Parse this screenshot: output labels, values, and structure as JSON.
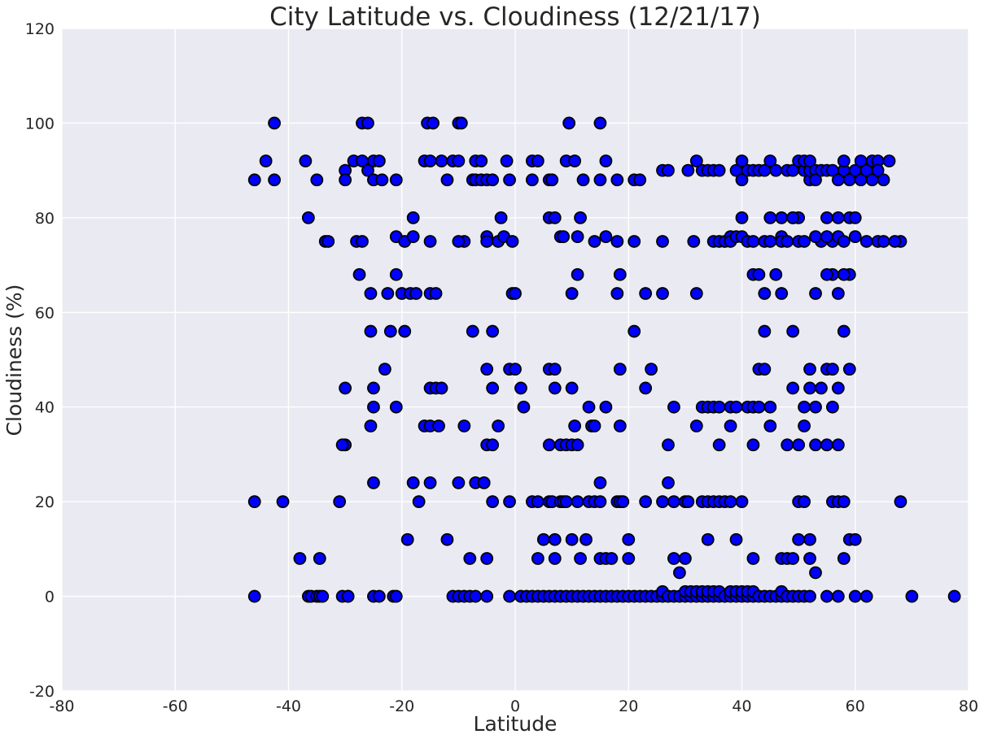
{
  "chart_data": {
    "type": "scatter",
    "title": "City Latitude vs. Cloudiness (12/21/17)",
    "xlabel": "Latitude",
    "ylabel": "Cloudiness (%)",
    "xlim": [
      -80,
      80
    ],
    "ylim": [
      -20,
      120
    ],
    "xticks": [
      -80,
      -60,
      -40,
      -20,
      0,
      20,
      40,
      60,
      80
    ],
    "yticks": [
      -20,
      0,
      20,
      40,
      60,
      80,
      100,
      120
    ],
    "grid": true,
    "legend": "none",
    "colors": {
      "background": "#eaeaf2",
      "grid": "#ffffff",
      "marker_fill": "#0000ff",
      "marker_edge": "#000000"
    },
    "points": [
      [
        -46,
        88
      ],
      [
        -44,
        92
      ],
      [
        -42.5,
        100
      ],
      [
        -42.5,
        88
      ],
      [
        -37,
        92
      ],
      [
        -36.5,
        80
      ],
      [
        -35,
        88
      ],
      [
        -33.5,
        75
      ],
      [
        -33,
        75
      ],
      [
        -30,
        90
      ],
      [
        -30,
        88
      ],
      [
        -29.5,
        0
      ],
      [
        -28.5,
        92
      ],
      [
        -28,
        75
      ],
      [
        -27.5,
        68
      ],
      [
        -27,
        75
      ],
      [
        -27,
        92
      ],
      [
        -27,
        100
      ],
      [
        -26,
        100
      ],
      [
        -26,
        90
      ],
      [
        -25.5,
        64
      ],
      [
        -25.5,
        56
      ],
      [
        -25,
        88
      ],
      [
        -25,
        92
      ],
      [
        -24,
        92
      ],
      [
        -23.5,
        88
      ],
      [
        -22.5,
        64
      ],
      [
        -22,
        56
      ],
      [
        -21,
        88
      ],
      [
        -21,
        68
      ],
      [
        -21,
        76
      ],
      [
        -20,
        64
      ],
      [
        -19.5,
        56
      ],
      [
        -19.5,
        75
      ],
      [
        -18.5,
        64
      ],
      [
        -18,
        80
      ],
      [
        -18,
        76
      ],
      [
        -17.5,
        64
      ],
      [
        -16,
        92
      ],
      [
        -15.5,
        100
      ],
      [
        -15,
        64
      ],
      [
        -15,
        92
      ],
      [
        -15,
        75
      ],
      [
        -14.5,
        100
      ],
      [
        -14,
        64
      ],
      [
        -13,
        92
      ],
      [
        -12,
        88
      ],
      [
        -11,
        92
      ],
      [
        -10,
        92
      ],
      [
        -10,
        100
      ],
      [
        -9.5,
        100
      ],
      [
        -9,
        75
      ],
      [
        -10,
        75
      ],
      [
        -7.5,
        88
      ],
      [
        -7,
        88
      ],
      [
        -7,
        92
      ],
      [
        -6,
        92
      ],
      [
        -6,
        88
      ],
      [
        -5,
        88
      ],
      [
        -5,
        76
      ],
      [
        -5,
        75
      ],
      [
        -4,
        88
      ],
      [
        -3,
        75
      ],
      [
        -2.5,
        80
      ],
      [
        -2,
        76
      ],
      [
        -1.5,
        92
      ],
      [
        -1,
        88
      ],
      [
        -0.5,
        75
      ],
      [
        -0.5,
        64
      ],
      [
        0,
        64
      ],
      [
        3,
        92
      ],
      [
        4,
        92
      ],
      [
        3,
        88
      ],
      [
        6,
        88
      ],
      [
        6.5,
        88
      ],
      [
        6,
        80
      ],
      [
        7,
        80
      ],
      [
        8,
        76
      ],
      [
        8.5,
        76
      ],
      [
        9,
        92
      ],
      [
        9.5,
        100
      ],
      [
        10.5,
        92
      ],
      [
        10,
        64
      ],
      [
        11,
        76
      ],
      [
        11.5,
        80
      ],
      [
        11,
        68
      ],
      [
        12,
        88
      ],
      [
        14,
        75
      ],
      [
        15,
        88
      ],
      [
        15,
        100
      ],
      [
        16,
        92
      ],
      [
        16,
        76
      ],
      [
        18,
        88
      ],
      [
        18,
        75
      ],
      [
        18,
        64
      ],
      [
        18.5,
        68
      ],
      [
        21,
        88
      ],
      [
        21,
        75
      ],
      [
        22,
        88
      ],
      [
        23,
        64
      ],
      [
        26,
        90
      ],
      [
        27,
        90
      ],
      [
        26,
        75
      ],
      [
        26,
        64
      ],
      [
        30.5,
        90
      ],
      [
        31.5,
        75
      ],
      [
        32,
        92
      ],
      [
        32,
        64
      ],
      [
        33,
        90
      ],
      [
        34,
        90
      ],
      [
        35,
        90
      ],
      [
        36,
        90
      ],
      [
        35,
        75
      ],
      [
        36,
        75
      ],
      [
        37,
        75
      ],
      [
        38,
        76
      ],
      [
        38,
        75
      ],
      [
        39,
        76
      ],
      [
        39,
        90
      ],
      [
        40,
        92
      ],
      [
        40,
        88
      ],
      [
        40,
        80
      ],
      [
        40,
        76
      ],
      [
        41,
        75
      ],
      [
        41,
        90
      ],
      [
        42,
        90
      ],
      [
        42,
        68
      ],
      [
        42,
        75
      ],
      [
        43,
        90
      ],
      [
        44,
        90
      ],
      [
        44,
        75
      ],
      [
        45,
        92
      ],
      [
        45,
        75
      ],
      [
        46,
        90
      ],
      [
        46,
        68
      ],
      [
        47,
        76
      ],
      [
        47,
        75
      ],
      [
        48,
        90
      ],
      [
        49,
        90
      ],
      [
        49,
        80
      ],
      [
        50,
        75
      ],
      [
        50,
        92
      ],
      [
        51,
        90
      ],
      [
        51,
        92
      ],
      [
        52,
        88
      ],
      [
        52,
        90
      ],
      [
        52,
        92
      ],
      [
        53,
        90
      ],
      [
        53,
        88
      ],
      [
        54,
        90
      ],
      [
        54,
        75
      ],
      [
        55,
        90
      ],
      [
        55,
        80
      ],
      [
        56,
        90
      ],
      [
        56,
        75
      ],
      [
        57,
        88
      ],
      [
        57,
        76
      ],
      [
        58,
        90
      ],
      [
        58,
        92
      ],
      [
        58,
        75
      ],
      [
        59,
        88
      ],
      [
        59,
        80
      ],
      [
        60,
        90
      ],
      [
        60,
        76
      ],
      [
        61,
        92
      ],
      [
        61,
        88
      ],
      [
        62,
        90
      ],
      [
        62,
        75
      ],
      [
        63,
        88
      ],
      [
        63,
        92
      ],
      [
        64,
        75
      ],
      [
        64,
        92
      ],
      [
        65,
        88
      ],
      [
        65,
        75
      ],
      [
        66,
        92
      ],
      [
        68,
        75
      ],
      [
        44,
        64
      ],
      [
        48,
        75
      ],
      [
        50,
        80
      ],
      [
        51,
        75
      ],
      [
        53,
        76
      ],
      [
        55,
        76
      ],
      [
        56,
        68
      ],
      [
        57,
        80
      ],
      [
        59,
        68
      ],
      [
        43,
        68
      ],
      [
        45,
        80
      ],
      [
        47,
        80
      ],
      [
        55,
        68
      ],
      [
        57,
        64
      ],
      [
        58,
        68
      ],
      [
        60,
        80
      ],
      [
        64,
        90
      ],
      [
        67,
        75
      ],
      [
        53,
        64
      ],
      [
        49,
        80
      ],
      [
        -30,
        44
      ],
      [
        -30,
        32
      ],
      [
        -30.5,
        32
      ],
      [
        -25.5,
        36
      ],
      [
        -25,
        44
      ],
      [
        -25,
        40
      ],
      [
        -23,
        48
      ],
      [
        -21,
        40
      ],
      [
        -16,
        36
      ],
      [
        -15,
        36
      ],
      [
        -15,
        44
      ],
      [
        -14,
        44
      ],
      [
        -13.5,
        36
      ],
      [
        -13,
        44
      ],
      [
        -9,
        36
      ],
      [
        -7.5,
        56
      ],
      [
        -5,
        48
      ],
      [
        -5,
        32
      ],
      [
        -4,
        32
      ],
      [
        -4,
        44
      ],
      [
        -4,
        56
      ],
      [
        -3,
        36
      ],
      [
        -1,
        48
      ],
      [
        0,
        48
      ],
      [
        1,
        44
      ],
      [
        1.5,
        40
      ],
      [
        6,
        48
      ],
      [
        6,
        32
      ],
      [
        7,
        44
      ],
      [
        7,
        48
      ],
      [
        8,
        32
      ],
      [
        9,
        32
      ],
      [
        10,
        32
      ],
      [
        10,
        44
      ],
      [
        10.5,
        36
      ],
      [
        11,
        32
      ],
      [
        13,
        40
      ],
      [
        13.5,
        36
      ],
      [
        14,
        36
      ],
      [
        16,
        40
      ],
      [
        18.5,
        48
      ],
      [
        18.5,
        36
      ],
      [
        21,
        56
      ],
      [
        23,
        44
      ],
      [
        24,
        48
      ],
      [
        28,
        40
      ],
      [
        27,
        32
      ],
      [
        32,
        36
      ],
      [
        33,
        40
      ],
      [
        34,
        40
      ],
      [
        35,
        40
      ],
      [
        36,
        40
      ],
      [
        36,
        32
      ],
      [
        38,
        40
      ],
      [
        38,
        36
      ],
      [
        39,
        40
      ],
      [
        41,
        40
      ],
      [
        42,
        40
      ],
      [
        42,
        32
      ],
      [
        43,
        48
      ],
      [
        43,
        40
      ],
      [
        44,
        56
      ],
      [
        44,
        48
      ],
      [
        45,
        40
      ],
      [
        45,
        36
      ],
      [
        47,
        64
      ],
      [
        48,
        32
      ],
      [
        49,
        44
      ],
      [
        49,
        56
      ],
      [
        50,
        32
      ],
      [
        51,
        40
      ],
      [
        51,
        36
      ],
      [
        52,
        48
      ],
      [
        52,
        44
      ],
      [
        53,
        40
      ],
      [
        53,
        32
      ],
      [
        54,
        44
      ],
      [
        55,
        48
      ],
      [
        55,
        32
      ],
      [
        56,
        48
      ],
      [
        56,
        40
      ],
      [
        57,
        44
      ],
      [
        57,
        32
      ],
      [
        58,
        56
      ],
      [
        59,
        48
      ],
      [
        -46,
        20
      ],
      [
        -41,
        20
      ],
      [
        -38,
        8
      ],
      [
        -34.5,
        8
      ],
      [
        -31,
        20
      ],
      [
        -25,
        24
      ],
      [
        -19,
        12
      ],
      [
        -18,
        24
      ],
      [
        -17,
        20
      ],
      [
        -15,
        24
      ],
      [
        -12,
        12
      ],
      [
        -10,
        24
      ],
      [
        -8,
        8
      ],
      [
        -7,
        24
      ],
      [
        -5.5,
        24
      ],
      [
        -5,
        8
      ],
      [
        -4,
        20
      ],
      [
        -1,
        20
      ],
      [
        3,
        20
      ],
      [
        4,
        8
      ],
      [
        4,
        20
      ],
      [
        5,
        12
      ],
      [
        6,
        20
      ],
      [
        6.5,
        20
      ],
      [
        7,
        8
      ],
      [
        7,
        12
      ],
      [
        8,
        20
      ],
      [
        8.5,
        20
      ],
      [
        9,
        20
      ],
      [
        10,
        12
      ],
      [
        11,
        20
      ],
      [
        11.5,
        8
      ],
      [
        12.5,
        12
      ],
      [
        13,
        20
      ],
      [
        14,
        20
      ],
      [
        15,
        20
      ],
      [
        15,
        24
      ],
      [
        15,
        8
      ],
      [
        16,
        8
      ],
      [
        17,
        8
      ],
      [
        18,
        20
      ],
      [
        18.5,
        20
      ],
      [
        19,
        20
      ],
      [
        20,
        8
      ],
      [
        20,
        12
      ],
      [
        23,
        20
      ],
      [
        26,
        20
      ],
      [
        27,
        24
      ],
      [
        28,
        20
      ],
      [
        28,
        8
      ],
      [
        29,
        5
      ],
      [
        30,
        8
      ],
      [
        30,
        20
      ],
      [
        30.5,
        20
      ],
      [
        33,
        20
      ],
      [
        34,
        20
      ],
      [
        34,
        12
      ],
      [
        35,
        20
      ],
      [
        36,
        20
      ],
      [
        37,
        20
      ],
      [
        38,
        20
      ],
      [
        39,
        12
      ],
      [
        40,
        20
      ],
      [
        42,
        8
      ],
      [
        47,
        8
      ],
      [
        48,
        8
      ],
      [
        49,
        8
      ],
      [
        50,
        12
      ],
      [
        50,
        20
      ],
      [
        51,
        20
      ],
      [
        52,
        8
      ],
      [
        52,
        12
      ],
      [
        53,
        5
      ],
      [
        56,
        20
      ],
      [
        57,
        20
      ],
      [
        58,
        20
      ],
      [
        58,
        8
      ],
      [
        59,
        12
      ],
      [
        60,
        12
      ],
      [
        68,
        20
      ],
      [
        -46,
        0
      ],
      [
        -36.5,
        0
      ],
      [
        -36,
        0
      ],
      [
        -35,
        0
      ],
      [
        -34.5,
        0
      ],
      [
        -34,
        0
      ],
      [
        -30.5,
        0
      ],
      [
        -29.5,
        0
      ],
      [
        -25,
        0
      ],
      [
        -24,
        0
      ],
      [
        -21.5,
        0
      ],
      [
        -21,
        0
      ],
      [
        -11,
        0
      ],
      [
        -10,
        0
      ],
      [
        -9,
        0
      ],
      [
        -8,
        0
      ],
      [
        -7,
        0
      ],
      [
        -5,
        0
      ],
      [
        -1,
        0
      ],
      [
        1,
        0
      ],
      [
        2,
        0
      ],
      [
        3,
        0
      ],
      [
        4,
        0
      ],
      [
        5,
        0
      ],
      [
        6,
        0
      ],
      [
        7,
        0
      ],
      [
        8,
        0
      ],
      [
        9,
        0
      ],
      [
        10,
        0
      ],
      [
        11,
        0
      ],
      [
        12,
        0
      ],
      [
        13,
        0
      ],
      [
        14,
        0
      ],
      [
        15,
        0
      ],
      [
        16,
        0
      ],
      [
        17,
        0
      ],
      [
        18,
        0
      ],
      [
        19,
        0
      ],
      [
        20,
        0
      ],
      [
        21,
        0
      ],
      [
        22,
        0
      ],
      [
        23,
        0
      ],
      [
        24,
        0
      ],
      [
        25,
        0
      ],
      [
        26,
        0
      ],
      [
        26,
        1
      ],
      [
        27,
        0
      ],
      [
        28,
        0
      ],
      [
        29,
        0
      ],
      [
        30,
        0
      ],
      [
        30,
        1
      ],
      [
        31,
        0
      ],
      [
        31,
        1
      ],
      [
        32,
        0
      ],
      [
        32,
        1
      ],
      [
        33,
        0
      ],
      [
        33,
        1
      ],
      [
        34,
        0
      ],
      [
        34,
        1
      ],
      [
        35,
        0
      ],
      [
        35,
        1
      ],
      [
        36,
        0
      ],
      [
        36,
        1
      ],
      [
        37,
        0
      ],
      [
        38,
        0
      ],
      [
        38,
        1
      ],
      [
        39,
        0
      ],
      [
        39,
        1
      ],
      [
        40,
        0
      ],
      [
        40,
        1
      ],
      [
        41,
        0
      ],
      [
        41,
        1
      ],
      [
        42,
        0
      ],
      [
        42,
        1
      ],
      [
        43,
        0
      ],
      [
        44,
        0
      ],
      [
        45,
        0
      ],
      [
        46,
        0
      ],
      [
        47,
        0
      ],
      [
        47,
        1
      ],
      [
        48,
        0
      ],
      [
        49,
        0
      ],
      [
        50,
        0
      ],
      [
        51,
        0
      ],
      [
        52,
        0
      ],
      [
        55,
        0
      ],
      [
        57,
        0
      ],
      [
        60,
        0
      ],
      [
        62,
        0
      ],
      [
        70,
        0
      ],
      [
        77.5,
        0
      ]
    ]
  }
}
